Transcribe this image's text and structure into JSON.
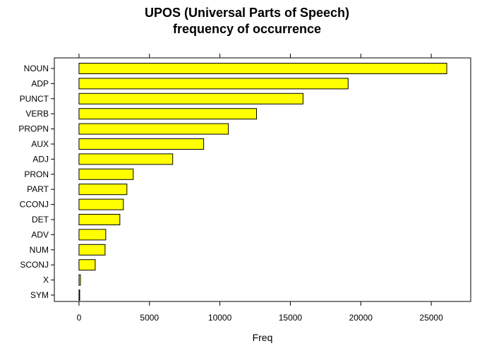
{
  "chart_data": {
    "type": "bar",
    "orientation": "horizontal",
    "title": "UPOS (Universal Parts of Speech)",
    "subtitle": "frequency of occurrence",
    "xlabel": "Freq",
    "ylabel": "",
    "categories": [
      "NOUN",
      "ADP",
      "PUNCT",
      "VERB",
      "PROPN",
      "AUX",
      "ADJ",
      "PRON",
      "PART",
      "CCONJ",
      "DET",
      "ADV",
      "NUM",
      "SCONJ",
      "X",
      "SYM"
    ],
    "values": [
      26100,
      19100,
      15900,
      12600,
      10600,
      8850,
      6650,
      3850,
      3400,
      3150,
      2900,
      1900,
      1850,
      1150,
      100,
      50
    ],
    "xlim": [
      -1750,
      27800
    ],
    "xticks": [
      0,
      5000,
      10000,
      15000,
      20000,
      25000
    ],
    "xtick_labels": [
      "0",
      "5000",
      "10000",
      "15000",
      "20000",
      "25000"
    ],
    "bar_color": "#ffff00",
    "bar_edge_color": "#000000",
    "grid": false,
    "legend": "none"
  }
}
